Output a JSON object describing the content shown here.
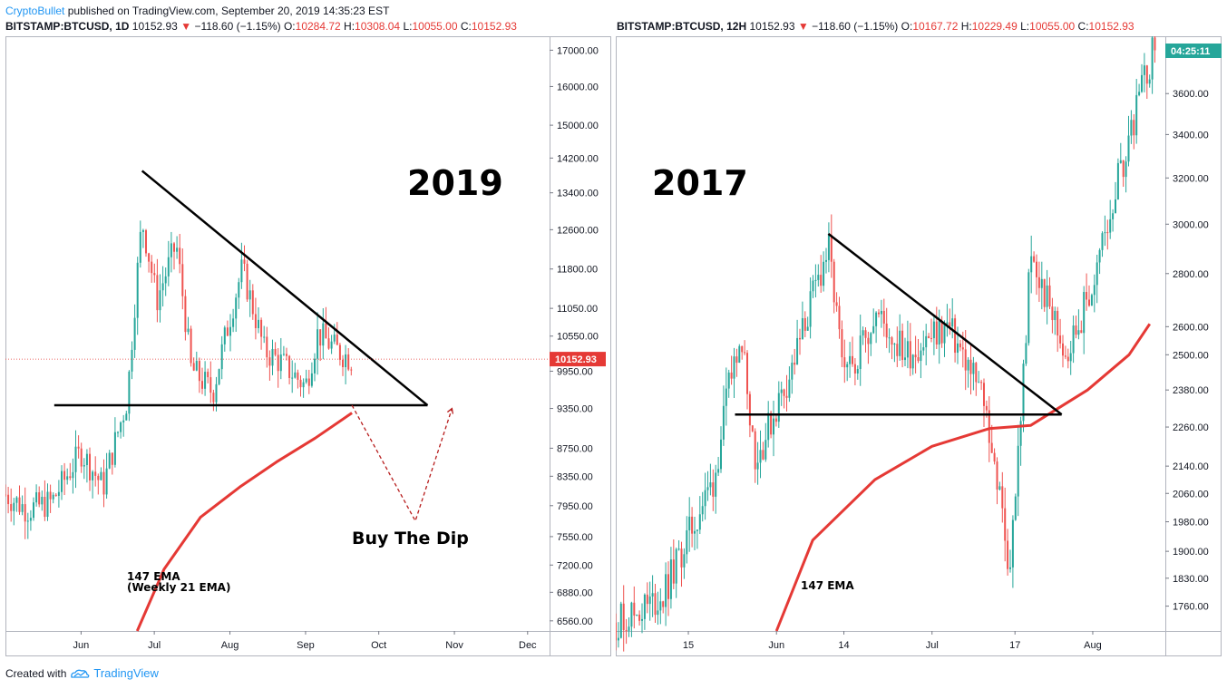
{
  "publish_line": {
    "author": "CryptoBullet",
    "text": "published on TradingView.com, September 20, 2019 14:35:23 EST"
  },
  "footer": {
    "created_with": "Created with",
    "brand": "TradingView"
  },
  "colors": {
    "up": "#26a69a",
    "down": "#ef5350",
    "ema": "#e53935",
    "trend": "#000000",
    "price_label": "#e53935",
    "time_label": "#26a69a"
  },
  "chart_data": [
    {
      "type": "candlestick",
      "header": {
        "symbol": "BITSTAMP:BTCUSD, 1D",
        "price": "10152.93",
        "change": "−118.60 (−1.15%)",
        "open_label": "O:",
        "open": "10284.72",
        "high_label": "H:",
        "high": "10308.04",
        "low_label": "L:",
        "low": "10055.00",
        "close_label": "C:",
        "close": "10152.93"
      },
      "big_label": "2019",
      "annotation": "Buy The Dip",
      "ema_label": "147 EMA",
      "ema_sublabel": "(Weekly 21 EMA)",
      "price_tag": "10152.93",
      "y_ticks": [
        "17000.00",
        "16000.00",
        "15000.00",
        "14200.00",
        "13400.00",
        "12600.00",
        "11800.00",
        "11050.00",
        "10550.00",
        "9950.00",
        "9350.00",
        "8750.00",
        "8350.00",
        "7950.00",
        "7550.00",
        "7200.00",
        "6880.00",
        "6560.00"
      ],
      "x_ticks": [
        "Jun",
        "Jul",
        "Aug",
        "Sep",
        "Oct",
        "Nov",
        "Dec"
      ],
      "scale": "log",
      "ylim": [
        6450,
        17400
      ],
      "trendlines": [
        {
          "from": [
            "2019-06-26",
            13900
          ],
          "to": [
            "2019-10-21",
            9400
          ]
        },
        {
          "from": [
            "2019-05-21",
            9400
          ],
          "to": [
            "2019-10-21",
            9400
          ]
        }
      ],
      "projection": [
        [
          "2019-09-20",
          9400
        ],
        [
          "2019-10-16",
          7750
        ],
        [
          "2019-10-31",
          9350
        ]
      ],
      "ema_points": [
        [
          "2019-06-24",
          6450
        ],
        [
          "2019-07-05",
          7150
        ],
        [
          "2019-07-20",
          7800
        ],
        [
          "2019-08-05",
          8200
        ],
        [
          "2019-08-20",
          8550
        ],
        [
          "2019-09-05",
          8900
        ],
        [
          "2019-09-20",
          9280
        ]
      ],
      "candles_close_path": [
        [
          "2019-05-01",
          8100
        ],
        [
          "2019-05-10",
          7900
        ],
        [
          "2019-05-20",
          8000
        ],
        [
          "2019-06-01",
          8700
        ],
        [
          "2019-06-10",
          8200
        ],
        [
          "2019-06-20",
          9500
        ],
        [
          "2019-06-26",
          12800
        ],
        [
          "2019-07-02",
          11200
        ],
        [
          "2019-07-10",
          12300
        ],
        [
          "2019-07-16",
          10000
        ],
        [
          "2019-07-25",
          9600
        ],
        [
          "2019-08-06",
          11800
        ],
        [
          "2019-08-15",
          10300
        ],
        [
          "2019-08-22",
          10100
        ],
        [
          "2019-09-01",
          9700
        ],
        [
          "2019-09-06",
          10600
        ],
        [
          "2019-09-14",
          10300
        ],
        [
          "2019-09-20",
          10152
        ]
      ]
    },
    {
      "type": "candlestick",
      "header": {
        "symbol": "BITSTAMP:BTCUSD, 12H",
        "price": "10152.93",
        "change": "−118.60 (−1.15%)",
        "open_label": "O:",
        "open": "10167.72",
        "high_label": "H:",
        "high": "10229.49",
        "low_label": "L:",
        "low": "10055.00",
        "close_label": "C:",
        "close": "10152.93"
      },
      "big_label": "2017",
      "ema_label": "147 EMA",
      "time_tag": "04:25:11",
      "y_ticks": [
        "3600.00",
        "3400.00",
        "3200.00",
        "3000.00",
        "2800.00",
        "2600.00",
        "2500.00",
        "2380.00",
        "2260.00",
        "2140.00",
        "2060.00",
        "1980.00",
        "1900.00",
        "1830.00",
        "1760.00"
      ],
      "x_ticks": [
        "15",
        "Jun",
        "14",
        "Jul",
        "17",
        "Aug"
      ],
      "scale": "log",
      "ylim": [
        1700,
        3900
      ],
      "trendlines": [
        {
          "from": [
            "2017-06-11",
            2960
          ],
          "to": [
            "2017-07-26",
            2300
          ]
        },
        {
          "from": [
            "2017-05-24",
            2300
          ],
          "to": [
            "2017-07-26",
            2300
          ]
        }
      ],
      "ema_points": [
        [
          "2017-06-01",
          1700
        ],
        [
          "2017-06-08",
          1930
        ],
        [
          "2017-06-20",
          2100
        ],
        [
          "2017-07-01",
          2200
        ],
        [
          "2017-07-12",
          2255
        ],
        [
          "2017-07-20",
          2265
        ],
        [
          "2017-07-31",
          2380
        ],
        [
          "2017-08-08",
          2500
        ],
        [
          "2017-08-12",
          2610
        ]
      ],
      "candles_close_path": [
        [
          "2017-05-01",
          1720
        ],
        [
          "2017-05-10",
          1780
        ],
        [
          "2017-05-20",
          2100
        ],
        [
          "2017-05-25",
          2600
        ],
        [
          "2017-05-28",
          2150
        ],
        [
          "2017-06-04",
          2450
        ],
        [
          "2017-06-11",
          2900
        ],
        [
          "2017-06-14",
          2400
        ],
        [
          "2017-06-20",
          2650
        ],
        [
          "2017-06-26",
          2500
        ],
        [
          "2017-07-04",
          2600
        ],
        [
          "2017-07-11",
          2350
        ],
        [
          "2017-07-16",
          1850
        ],
        [
          "2017-07-18",
          2250
        ],
        [
          "2017-07-20",
          2850
        ],
        [
          "2017-07-27",
          2500
        ],
        [
          "2017-08-01",
          2750
        ],
        [
          "2017-08-06",
          3200
        ],
        [
          "2017-08-13",
          3850
        ]
      ]
    }
  ]
}
